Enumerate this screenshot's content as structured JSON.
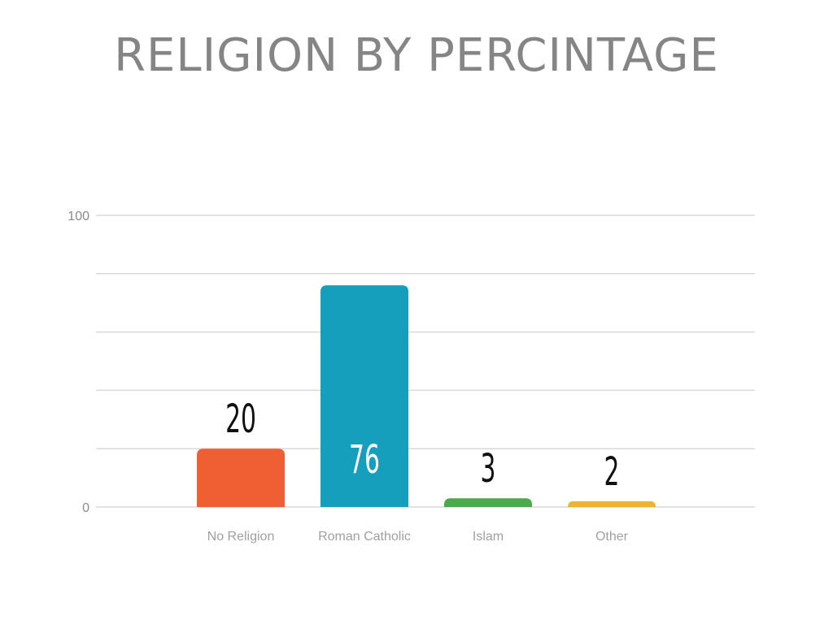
{
  "chart_data": {
    "type": "bar",
    "title": "RELIGION BY PERCINTAGE",
    "xlabel": "",
    "ylabel": "",
    "categories": [
      "No Religion",
      "Roman Catholic",
      "Islam",
      "Other"
    ],
    "values": [
      20,
      76,
      3,
      2
    ],
    "data_labels": [
      "20",
      "76",
      "3",
      "2"
    ],
    "y_ticks": [
      "0",
      "100"
    ],
    "ylim": [
      0,
      100
    ],
    "grid": true,
    "legend": "none",
    "colors": [
      "#f05f33",
      "#169fbc",
      "#4ca94c",
      "#eab330"
    ],
    "label_colors": [
      "#111111",
      "#ffffff",
      "#111111",
      "#111111"
    ]
  }
}
